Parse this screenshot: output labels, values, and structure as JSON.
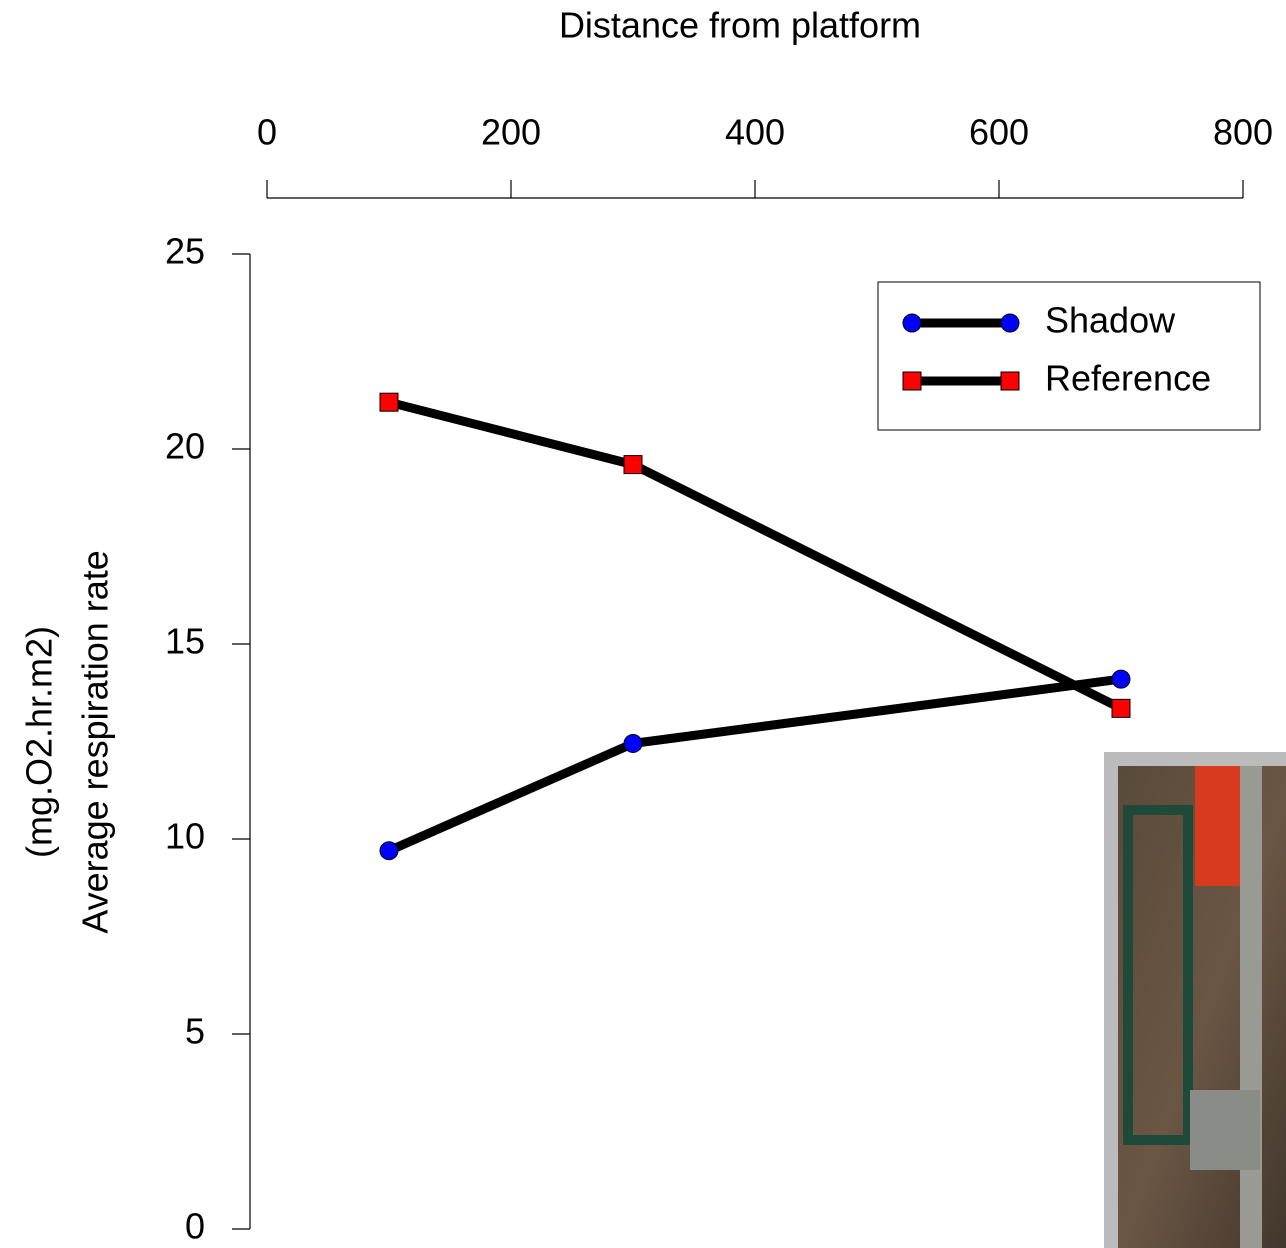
{
  "chart_data": {
    "type": "line",
    "xlabel": "Distance from platform",
    "ylabel": "Average respiration rate",
    "ylabel_unit": "(mg.O2.hr.m2)",
    "x": [
      100,
      300,
      700
    ],
    "series": [
      {
        "name": "Shadow",
        "color": "#0000ff",
        "marker": "circle",
        "values": [
          9.7,
          12.45,
          14.1
        ]
      },
      {
        "name": "Reference",
        "color": "#ff0000",
        "marker": "square",
        "values": [
          21.2,
          19.6,
          13.35
        ]
      }
    ],
    "xlim": [
      0,
      800
    ],
    "xticks": [
      0,
      200,
      400,
      600,
      800
    ],
    "ylim": [
      0,
      25
    ],
    "yticks": [
      0,
      5,
      10,
      15,
      20,
      25
    ],
    "line_color": "#000000",
    "legend": "upper right",
    "grid": false
  }
}
